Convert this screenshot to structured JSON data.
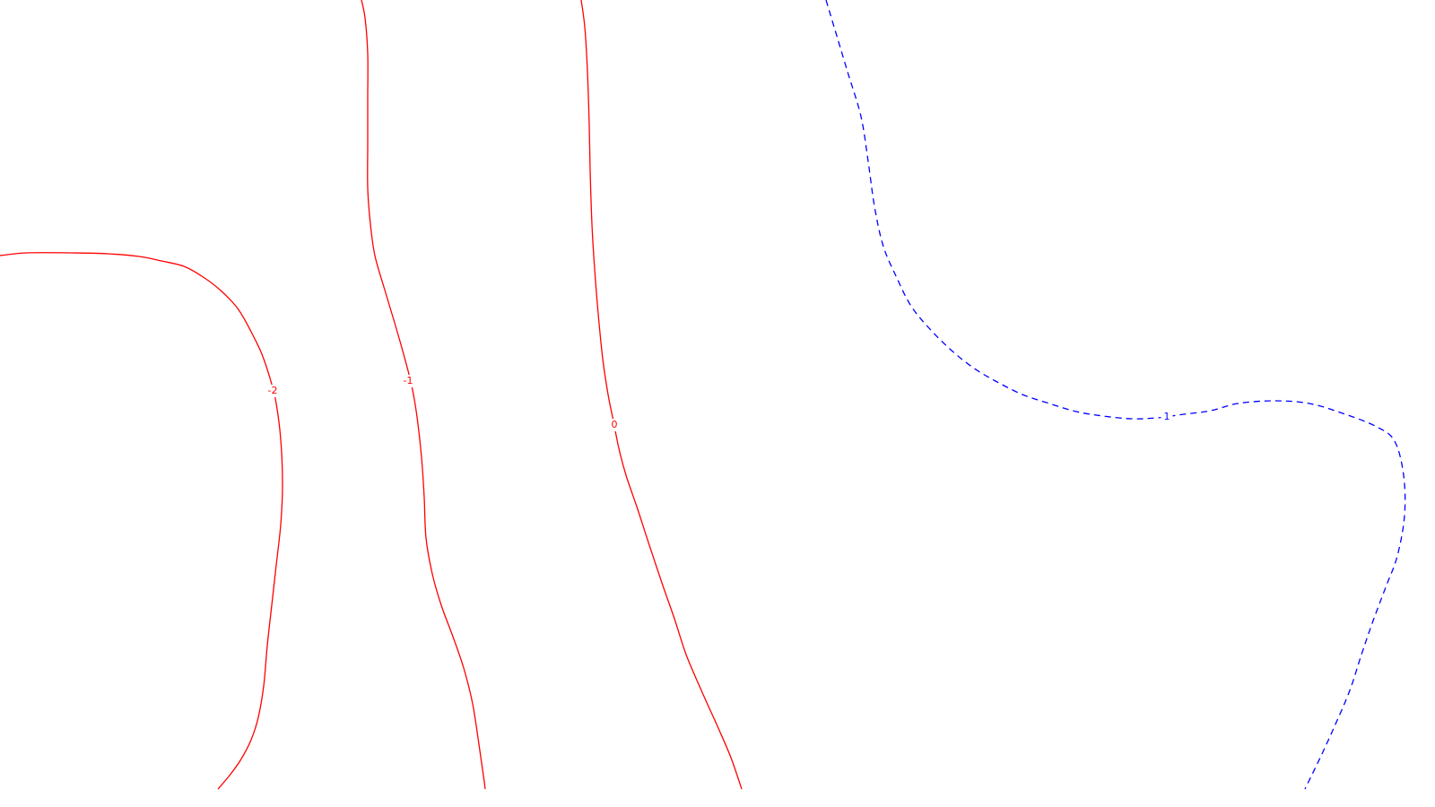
{
  "chart_data": {
    "type": "contour",
    "title": "",
    "xlabel": "",
    "ylabel": "",
    "grid": false,
    "legend": "none",
    "levels": [
      {
        "level": -2,
        "label": "-2",
        "color": "#ff0000",
        "linestyle": "solid",
        "label_at": [
          304,
          436
        ],
        "path": [
          [
            0,
            285
          ],
          [
            30,
            282
          ],
          [
            80,
            282
          ],
          [
            120,
            283
          ],
          [
            155,
            286
          ],
          [
            180,
            291
          ],
          [
            205,
            297
          ],
          [
            225,
            308
          ],
          [
            245,
            323
          ],
          [
            265,
            344
          ],
          [
            280,
            370
          ],
          [
            292,
            395
          ],
          [
            302,
            425
          ],
          [
            308,
            450
          ],
          [
            313,
            490
          ],
          [
            315,
            540
          ],
          [
            313,
            585
          ],
          [
            308,
            630
          ],
          [
            303,
            675
          ],
          [
            298,
            720
          ],
          [
            294,
            765
          ],
          [
            288,
            800
          ],
          [
            280,
            825
          ],
          [
            268,
            848
          ],
          [
            255,
            866
          ],
          [
            243,
            880
          ]
        ]
      },
      {
        "level": -1,
        "label": "-1",
        "color": "#ff0000",
        "linestyle": "solid",
        "label_at": [
          455,
          425
        ],
        "path": [
          [
            403,
            0
          ],
          [
            407,
            20
          ],
          [
            410,
            60
          ],
          [
            410,
            110
          ],
          [
            410,
            160
          ],
          [
            410,
            210
          ],
          [
            413,
            250
          ],
          [
            418,
            285
          ],
          [
            428,
            320
          ],
          [
            440,
            360
          ],
          [
            450,
            395
          ],
          [
            459,
            430
          ],
          [
            465,
            465
          ],
          [
            470,
            510
          ],
          [
            473,
            555
          ],
          [
            475,
            600
          ],
          [
            482,
            640
          ],
          [
            492,
            675
          ],
          [
            505,
            710
          ],
          [
            517,
            745
          ],
          [
            527,
            785
          ],
          [
            534,
            830
          ],
          [
            539,
            865
          ],
          [
            541,
            880
          ]
        ]
      },
      {
        "level": 0,
        "label": "0",
        "color": "#ff0000",
        "linestyle": "solid",
        "label_at": [
          685,
          474
        ],
        "path": [
          [
            648,
            0
          ],
          [
            652,
            30
          ],
          [
            655,
            80
          ],
          [
            657,
            140
          ],
          [
            658,
            190
          ],
          [
            660,
            250
          ],
          [
            663,
            300
          ],
          [
            667,
            350
          ],
          [
            672,
            400
          ],
          [
            678,
            440
          ],
          [
            684,
            470
          ],
          [
            690,
            500
          ],
          [
            698,
            530
          ],
          [
            710,
            565
          ],
          [
            723,
            605
          ],
          [
            738,
            650
          ],
          [
            752,
            690
          ],
          [
            765,
            730
          ],
          [
            782,
            770
          ],
          [
            800,
            810
          ],
          [
            815,
            845
          ],
          [
            827,
            880
          ]
        ]
      },
      {
        "level": 1,
        "label": "1",
        "color": "#0000ff",
        "linestyle": "dashed",
        "label_at": [
          1301,
          465
        ],
        "path": [
          [
            921,
            0
          ],
          [
            930,
            30
          ],
          [
            945,
            80
          ],
          [
            960,
            130
          ],
          [
            968,
            180
          ],
          [
            975,
            230
          ],
          [
            985,
            275
          ],
          [
            1000,
            310
          ],
          [
            1015,
            340
          ],
          [
            1035,
            365
          ],
          [
            1060,
            390
          ],
          [
            1085,
            410
          ],
          [
            1110,
            425
          ],
          [
            1140,
            440
          ],
          [
            1170,
            450
          ],
          [
            1200,
            459
          ],
          [
            1230,
            464
          ],
          [
            1262,
            467
          ],
          [
            1290,
            466
          ],
          [
            1320,
            462
          ],
          [
            1350,
            458
          ],
          [
            1380,
            450
          ],
          [
            1420,
            447
          ],
          [
            1460,
            450
          ],
          [
            1500,
            462
          ],
          [
            1535,
            476
          ],
          [
            1555,
            492
          ],
          [
            1565,
            530
          ],
          [
            1566,
            575
          ],
          [
            1558,
            620
          ],
          [
            1545,
            655
          ],
          [
            1530,
            695
          ],
          [
            1518,
            730
          ],
          [
            1505,
            770
          ],
          [
            1488,
            810
          ],
          [
            1472,
            845
          ],
          [
            1455,
            880
          ]
        ]
      }
    ]
  }
}
